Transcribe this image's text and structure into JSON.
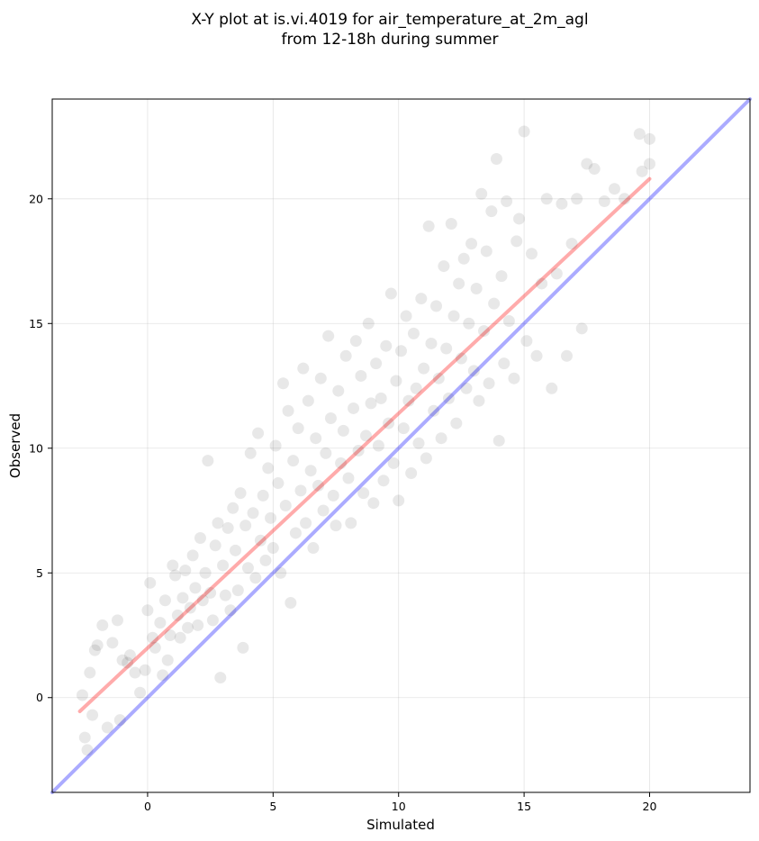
{
  "chart_data": {
    "type": "scatter",
    "title_line1": "X-Y plot at is.vi.4019 for air_temperature_at_2m_agl",
    "title_line2": "from 12-18h during summer",
    "xlabel": "Simulated",
    "ylabel": "Observed",
    "xlim": [
      -3.8,
      24.0
    ],
    "ylim": [
      -3.8,
      24.0
    ],
    "xticks": [
      0,
      5,
      10,
      15,
      20
    ],
    "yticks": [
      0,
      5,
      10,
      15,
      20
    ],
    "grid": true,
    "point_color": "#000000",
    "identity_line": {
      "color": "#0000ff",
      "from": [
        -3.8,
        -3.8
      ],
      "to": [
        24.0,
        24.0
      ]
    },
    "fit_line": {
      "color": "#ff0000",
      "from": [
        -2.7,
        -0.55
      ],
      "to": [
        20.0,
        20.8
      ]
    },
    "points": [
      [
        -2.6,
        0.1
      ],
      [
        -2.5,
        -1.6
      ],
      [
        -2.4,
        -2.1
      ],
      [
        -2.3,
        1.0
      ],
      [
        -2.2,
        -0.7
      ],
      [
        -2.1,
        1.9
      ],
      [
        -2.0,
        2.1
      ],
      [
        -1.8,
        2.9
      ],
      [
        -1.6,
        -1.2
      ],
      [
        -1.4,
        2.2
      ],
      [
        -1.2,
        3.1
      ],
      [
        -1.1,
        -0.9
      ],
      [
        -1.0,
        1.5
      ],
      [
        -0.8,
        1.4
      ],
      [
        -0.7,
        1.7
      ],
      [
        -0.5,
        1.0
      ],
      [
        -0.3,
        0.2
      ],
      [
        -0.1,
        1.1
      ],
      [
        0.0,
        3.5
      ],
      [
        0.1,
        4.6
      ],
      [
        0.2,
        2.4
      ],
      [
        0.3,
        2.0
      ],
      [
        0.5,
        3.0
      ],
      [
        0.6,
        0.9
      ],
      [
        0.7,
        3.9
      ],
      [
        0.8,
        1.5
      ],
      [
        0.9,
        2.5
      ],
      [
        1.0,
        5.3
      ],
      [
        1.1,
        4.9
      ],
      [
        1.2,
        3.3
      ],
      [
        1.3,
        2.4
      ],
      [
        1.4,
        4.0
      ],
      [
        1.5,
        5.1
      ],
      [
        1.6,
        2.8
      ],
      [
        1.7,
        3.6
      ],
      [
        1.8,
        5.7
      ],
      [
        1.9,
        4.4
      ],
      [
        2.0,
        2.9
      ],
      [
        2.1,
        6.4
      ],
      [
        2.2,
        3.9
      ],
      [
        2.3,
        5.0
      ],
      [
        2.4,
        9.5
      ],
      [
        2.5,
        4.2
      ],
      [
        2.6,
        3.1
      ],
      [
        2.7,
        6.1
      ],
      [
        2.8,
        7.0
      ],
      [
        2.9,
        0.8
      ],
      [
        3.0,
        5.3
      ],
      [
        3.1,
        4.1
      ],
      [
        3.2,
        6.8
      ],
      [
        3.3,
        3.5
      ],
      [
        3.4,
        7.6
      ],
      [
        3.5,
        5.9
      ],
      [
        3.6,
        4.3
      ],
      [
        3.7,
        8.2
      ],
      [
        3.8,
        2.0
      ],
      [
        3.9,
        6.9
      ],
      [
        4.0,
        5.2
      ],
      [
        4.1,
        9.8
      ],
      [
        4.2,
        7.4
      ],
      [
        4.3,
        4.8
      ],
      [
        4.4,
        10.6
      ],
      [
        4.5,
        6.3
      ],
      [
        4.6,
        8.1
      ],
      [
        4.7,
        5.5
      ],
      [
        4.8,
        9.2
      ],
      [
        4.9,
        7.2
      ],
      [
        5.0,
        6.0
      ],
      [
        5.1,
        10.1
      ],
      [
        5.2,
        8.6
      ],
      [
        5.3,
        5.0
      ],
      [
        5.4,
        12.6
      ],
      [
        5.5,
        7.7
      ],
      [
        5.6,
        11.5
      ],
      [
        5.7,
        3.8
      ],
      [
        5.8,
        9.5
      ],
      [
        5.9,
        6.6
      ],
      [
        6.0,
        10.8
      ],
      [
        6.1,
        8.3
      ],
      [
        6.2,
        13.2
      ],
      [
        6.3,
        7.0
      ],
      [
        6.4,
        11.9
      ],
      [
        6.5,
        9.1
      ],
      [
        6.6,
        6.0
      ],
      [
        6.7,
        10.4
      ],
      [
        6.8,
        8.5
      ],
      [
        6.9,
        12.8
      ],
      [
        7.0,
        7.5
      ],
      [
        7.1,
        9.8
      ],
      [
        7.2,
        14.5
      ],
      [
        7.3,
        11.2
      ],
      [
        7.4,
        8.1
      ],
      [
        7.5,
        6.9
      ],
      [
        7.6,
        12.3
      ],
      [
        7.7,
        9.4
      ],
      [
        7.8,
        10.7
      ],
      [
        7.9,
        13.7
      ],
      [
        8.0,
        8.8
      ],
      [
        8.1,
        7.0
      ],
      [
        8.2,
        11.6
      ],
      [
        8.3,
        14.3
      ],
      [
        8.4,
        9.9
      ],
      [
        8.5,
        12.9
      ],
      [
        8.6,
        8.2
      ],
      [
        8.7,
        10.5
      ],
      [
        8.8,
        15.0
      ],
      [
        8.9,
        11.8
      ],
      [
        9.0,
        7.8
      ],
      [
        9.1,
        13.4
      ],
      [
        9.2,
        10.1
      ],
      [
        9.3,
        12.0
      ],
      [
        9.4,
        8.7
      ],
      [
        9.5,
        14.1
      ],
      [
        9.6,
        11.0
      ],
      [
        9.7,
        16.2
      ],
      [
        9.8,
        9.4
      ],
      [
        9.9,
        12.7
      ],
      [
        10.0,
        7.9
      ],
      [
        10.1,
        13.9
      ],
      [
        10.2,
        10.8
      ],
      [
        10.3,
        15.3
      ],
      [
        10.4,
        11.9
      ],
      [
        10.5,
        9.0
      ],
      [
        10.6,
        14.6
      ],
      [
        10.7,
        12.4
      ],
      [
        10.8,
        10.2
      ],
      [
        10.9,
        16.0
      ],
      [
        11.0,
        13.2
      ],
      [
        11.1,
        9.6
      ],
      [
        11.2,
        18.9
      ],
      [
        11.3,
        14.2
      ],
      [
        11.4,
        11.5
      ],
      [
        11.5,
        15.7
      ],
      [
        11.6,
        12.8
      ],
      [
        11.7,
        10.4
      ],
      [
        11.8,
        17.3
      ],
      [
        11.9,
        14.0
      ],
      [
        12.0,
        12.0
      ],
      [
        12.1,
        19.0
      ],
      [
        12.2,
        15.3
      ],
      [
        12.3,
        11.0
      ],
      [
        12.4,
        16.6
      ],
      [
        12.5,
        13.6
      ],
      [
        12.6,
        17.6
      ],
      [
        12.7,
        12.4
      ],
      [
        12.8,
        15.0
      ],
      [
        12.9,
        18.2
      ],
      [
        13.0,
        13.1
      ],
      [
        13.1,
        16.4
      ],
      [
        13.2,
        11.9
      ],
      [
        13.3,
        20.2
      ],
      [
        13.4,
        14.7
      ],
      [
        13.5,
        17.9
      ],
      [
        13.6,
        12.6
      ],
      [
        13.7,
        19.5
      ],
      [
        13.8,
        15.8
      ],
      [
        13.9,
        21.6
      ],
      [
        14.0,
        10.3
      ],
      [
        14.1,
        16.9
      ],
      [
        14.2,
        13.4
      ],
      [
        14.3,
        19.9
      ],
      [
        14.4,
        15.1
      ],
      [
        14.6,
        12.8
      ],
      [
        14.7,
        18.3
      ],
      [
        14.8,
        19.2
      ],
      [
        15.0,
        22.7
      ],
      [
        15.1,
        14.3
      ],
      [
        15.3,
        17.8
      ],
      [
        15.5,
        13.7
      ],
      [
        15.7,
        16.6
      ],
      [
        15.9,
        20.0
      ],
      [
        16.1,
        12.4
      ],
      [
        16.3,
        17.0
      ],
      [
        16.5,
        19.8
      ],
      [
        16.7,
        13.7
      ],
      [
        16.9,
        18.2
      ],
      [
        17.1,
        20.0
      ],
      [
        17.3,
        14.8
      ],
      [
        17.5,
        21.4
      ],
      [
        17.8,
        21.2
      ],
      [
        18.2,
        19.9
      ],
      [
        18.6,
        20.4
      ],
      [
        19.0,
        20.0
      ],
      [
        19.6,
        22.6
      ],
      [
        19.7,
        21.1
      ],
      [
        20.0,
        21.4
      ],
      [
        20.0,
        22.4
      ]
    ]
  }
}
